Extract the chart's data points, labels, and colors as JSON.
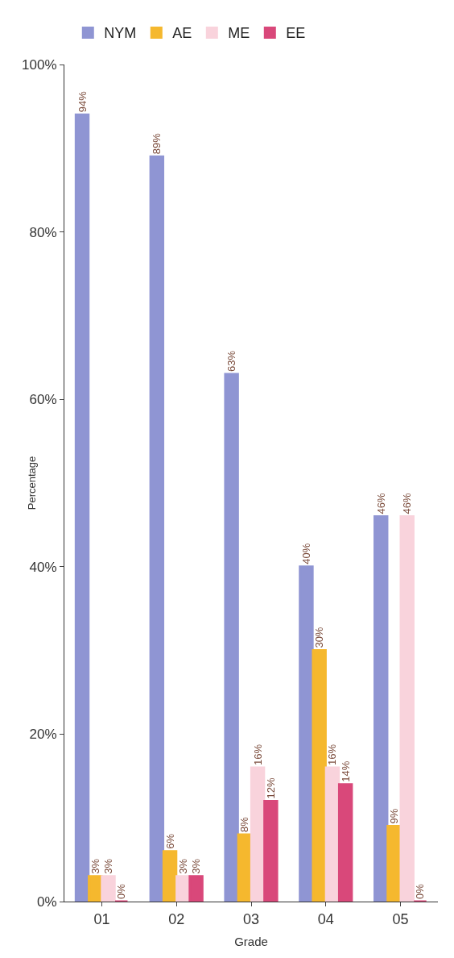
{
  "chart_data": {
    "type": "bar",
    "xlabel": "Grade",
    "ylabel": "Percentage",
    "categories": [
      "01",
      "02",
      "03",
      "04",
      "05"
    ],
    "series": [
      {
        "name": "NYM",
        "color": "#8f95d3",
        "values": [
          94,
          89,
          63,
          40,
          46
        ],
        "value_labels": [
          "94%",
          "89%",
          "63%",
          "40%",
          "46%"
        ]
      },
      {
        "name": "AE",
        "color": "#f5b82e",
        "values": [
          3,
          6,
          8,
          30,
          9
        ],
        "value_labels": [
          "3%",
          "6%",
          "8%",
          "30%",
          "9%"
        ]
      },
      {
        "name": "ME",
        "color": "#f9d3dc",
        "values": [
          3,
          3,
          16,
          16,
          46
        ],
        "value_labels": [
          "3%",
          "3%",
          "16%",
          "16%",
          "46%"
        ]
      },
      {
        "name": "EE",
        "color": "#d9487a",
        "values": [
          0,
          3,
          12,
          14,
          0
        ],
        "value_labels": [
          "0%",
          "3%",
          "12%",
          "14%",
          "0%"
        ]
      }
    ],
    "ylim": [
      0,
      100
    ],
    "yticks": [
      {
        "value": 0,
        "label": "0%"
      },
      {
        "value": 20,
        "label": "20%"
      },
      {
        "value": 40,
        "label": "40%"
      },
      {
        "value": 60,
        "label": "60%"
      },
      {
        "value": 80,
        "label": "80%"
      },
      {
        "value": 100,
        "label": "100%"
      }
    ],
    "grid": false,
    "legend": "top"
  }
}
